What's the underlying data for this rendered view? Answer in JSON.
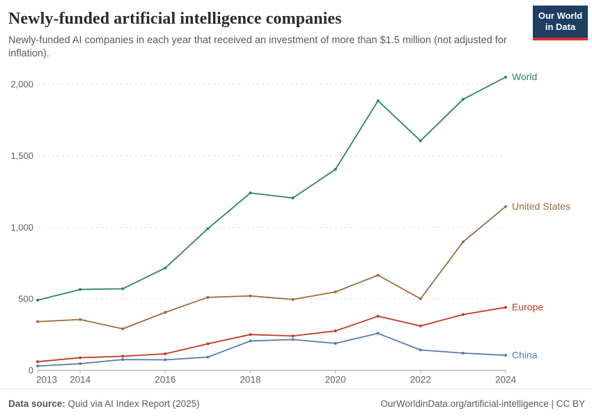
{
  "header": {
    "title": "Newly-funded artificial intelligence companies",
    "subtitle": "Newly-funded AI companies in each year that received an investment of more than $1.5 million (not adjusted for inflation).",
    "logo": {
      "line1": "Our World",
      "line2": "in Data",
      "bg_color": "#1d3d63",
      "accent_color": "#d8352e"
    }
  },
  "footer": {
    "source_label": "Data source:",
    "source_value": "Quid via AI Index Report (2025)",
    "credit": "OurWorldinData.org/artificial-intelligence | CC BY"
  },
  "chart_data": {
    "type": "line",
    "title": "Newly-funded artificial intelligence companies",
    "xlabel": "",
    "ylabel": "",
    "x": [
      2013,
      2014,
      2015,
      2016,
      2017,
      2018,
      2019,
      2020,
      2021,
      2022,
      2023,
      2024
    ],
    "xticks": [
      2013,
      2014,
      2016,
      2018,
      2020,
      2022,
      2024
    ],
    "xtick_labels": [
      "2013",
      "2014",
      "2016",
      "2018",
      "2020",
      "2022",
      "2024"
    ],
    "yticks": [
      0,
      500,
      1000,
      1500,
      2000
    ],
    "ytick_labels": [
      "0",
      "500",
      "1,000",
      "1,500",
      "2,000"
    ],
    "ylim": [
      0,
      2000
    ],
    "grid": "horizontal-dashed",
    "legend": "end-of-line-labels",
    "series": [
      {
        "name": "World",
        "color": "#2c8465",
        "values": [
          490,
          565,
          570,
          715,
          990,
          1240,
          1205,
          1405,
          1885,
          1605,
          1895,
          2050
        ]
      },
      {
        "name": "United States",
        "color": "#996d3d",
        "values": [
          340,
          355,
          290,
          405,
          510,
          520,
          495,
          548,
          665,
          500,
          898,
          1145
        ]
      },
      {
        "name": "Europe",
        "color": "#bf3c20",
        "values": [
          60,
          88,
          98,
          115,
          185,
          250,
          240,
          275,
          378,
          310,
          390,
          440
        ]
      },
      {
        "name": "China",
        "color": "#577ca8",
        "values": [
          30,
          46,
          75,
          73,
          92,
          205,
          215,
          188,
          258,
          142,
          120,
          105
        ]
      }
    ]
  }
}
